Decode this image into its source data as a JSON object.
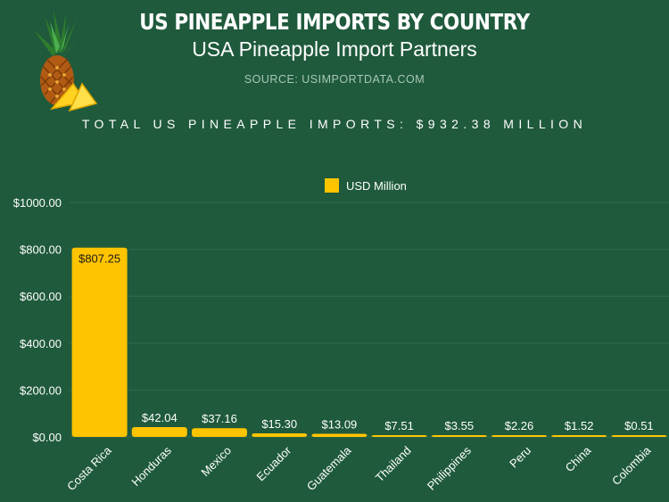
{
  "header": {
    "title": "US PINEAPPLE IMPORTS BY COUNTRY",
    "subtitle": "USA Pineapple Import Partners",
    "source": "SOURCE:  USIMPORTDATA.COM",
    "total": "TOTAL US PINEAPPLE IMPORTS: $932.38 MILLION"
  },
  "colors": {
    "background": "#1f5a3c",
    "bar": "#ffc400",
    "grid": "#2f6b4c",
    "text": "#ffffff"
  },
  "chart_data": {
    "type": "bar",
    "title": "US PINEAPPLE IMPORTS BY COUNTRY",
    "legend": "USD Million",
    "legend_position": "top-center",
    "categories": [
      "Costa Rica",
      "Honduras",
      "Mexico",
      "Ecuador",
      "Guatemala",
      "Thailand",
      "Philippines",
      "Peru",
      "China",
      "Colombia"
    ],
    "values": [
      807.25,
      42.04,
      37.16,
      15.3,
      13.09,
      7.51,
      3.55,
      2.26,
      1.52,
      0.51
    ],
    "value_labels": [
      "$807.25",
      "$42.04",
      "$37.16",
      "$15.30",
      "$13.09",
      "$7.51",
      "$3.55",
      "$2.26",
      "$1.52",
      "$0.51"
    ],
    "yticks": [
      0,
      200,
      400,
      600,
      800,
      1000
    ],
    "ytick_labels": [
      "$0.00",
      "$200.00",
      "$400.00",
      "$600.00",
      "$800.00",
      "$1000.00"
    ],
    "ylim": [
      0,
      1000
    ],
    "xlabel": "",
    "ylabel": "",
    "grid": true
  }
}
